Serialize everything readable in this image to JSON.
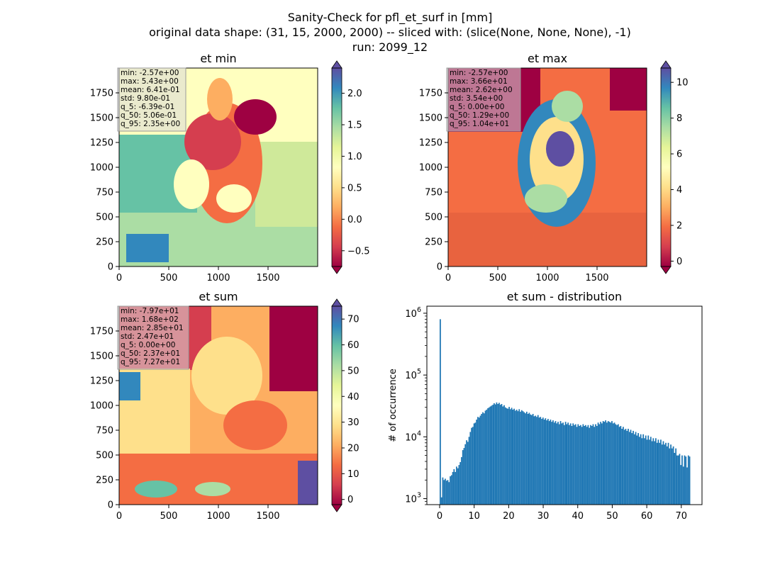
{
  "figure": {
    "title_lines": [
      "Sanity-Check for pfl_et_surf in [mm]",
      "original data shape: (31, 15, 2000, 2000) -- sliced with: (slice(None, None, None), -1)",
      "run: 2099_12"
    ]
  },
  "chart_data": [
    {
      "type": "heatmap",
      "title": "et min",
      "colormap": "Spectral",
      "x_ticks": [
        0,
        500,
        1000,
        1500
      ],
      "y_ticks": [
        0,
        250,
        500,
        750,
        1000,
        1250,
        1500,
        1750
      ],
      "xlim": [
        0,
        2000
      ],
      "ylim": [
        0,
        2000
      ],
      "colorbar": {
        "vmin": -0.75,
        "vmax": 2.4,
        "ticks": [
          -0.5,
          0.0,
          0.5,
          1.0,
          1.5,
          2.0
        ],
        "tick_labels": [
          "−0.5",
          "0.0",
          "0.5",
          "1.0",
          "1.5",
          "2.0"
        ],
        "extend": "both"
      },
      "stats": [
        "min: -2.57e+00",
        "max: 5.43e+00",
        "mean: 6.41e-01",
        "std: 9.80e-01",
        "q_5: -6.39e-01",
        "q_50: 5.06e-01",
        "q_95: 2.35e+00"
      ]
    },
    {
      "type": "heatmap",
      "title": "et max",
      "colormap": "Spectral",
      "x_ticks": [
        0,
        500,
        1000,
        1500
      ],
      "y_ticks": [
        0,
        250,
        500,
        750,
        1000,
        1250,
        1500,
        1750
      ],
      "xlim": [
        0,
        2000
      ],
      "ylim": [
        0,
        2000
      ],
      "colorbar": {
        "vmin": -0.3,
        "vmax": 10.8,
        "ticks": [
          0,
          2,
          4,
          6,
          8,
          10
        ],
        "tick_labels": [
          "0",
          "2",
          "4",
          "6",
          "8",
          "10"
        ],
        "extend": "both"
      },
      "stats": [
        "min: -2.57e+00",
        "max: 3.66e+01",
        "mean: 2.62e+00",
        "std: 3.54e+00",
        "q_5: 0.00e+00",
        "q_50: 1.29e+00",
        "q_95: 1.04e+01"
      ]
    },
    {
      "type": "heatmap",
      "title": "et sum",
      "colormap": "Spectral",
      "x_ticks": [
        0,
        500,
        1000,
        1500
      ],
      "y_ticks": [
        0,
        250,
        500,
        750,
        1000,
        1250,
        1500,
        1750
      ],
      "xlim": [
        0,
        2000
      ],
      "ylim": [
        0,
        2000
      ],
      "colorbar": {
        "vmin": -2,
        "vmax": 75,
        "ticks": [
          0,
          10,
          20,
          30,
          40,
          50,
          60,
          70
        ],
        "tick_labels": [
          "0",
          "10",
          "20",
          "30",
          "40",
          "50",
          "60",
          "70"
        ],
        "extend": "both"
      },
      "stats": [
        "min: -7.97e+01",
        "max: 1.68e+02",
        "mean: 2.85e+01",
        "std: 2.47e+01",
        "q_5: 0.00e+00",
        "q_50: 2.37e+01",
        "q_95: 7.27e+01"
      ]
    },
    {
      "type": "bar",
      "title": "et sum - distribution",
      "xlabel": "",
      "ylabel": "# of occurrence",
      "log_y": true,
      "xlim": [
        -3.7,
        76
      ],
      "ylim": [
        800,
        1300000
      ],
      "x_ticks": [
        0,
        10,
        20,
        30,
        40,
        50,
        60,
        70
      ],
      "y_ticks": [
        1000,
        10000,
        100000,
        1000000
      ],
      "y_tick_labels": [
        [
          "10",
          "3"
        ],
        [
          "10",
          "4"
        ],
        [
          "10",
          "5"
        ],
        [
          "10",
          "6"
        ]
      ],
      "color": "#1f77b4",
      "bin_width": 0.363,
      "bins": [
        {
          "x": 0,
          "count": 800000
        },
        {
          "x": 0.363,
          "count": 1050
        },
        {
          "x": 0.726,
          "count": 2200
        },
        {
          "x": 1.089,
          "count": 2000
        },
        {
          "x": 1.452,
          "count": 2100
        },
        {
          "x": 1.815,
          "count": 1950
        },
        {
          "x": 2.178,
          "count": 2000
        },
        {
          "x": 2.541,
          "count": 1850
        },
        {
          "x": 2.904,
          "count": 2300
        },
        {
          "x": 3.267,
          "count": 2400
        },
        {
          "x": 3.63,
          "count": 2700
        },
        {
          "x": 3.993,
          "count": 3000
        },
        {
          "x": 4.356,
          "count": 2700
        },
        {
          "x": 4.719,
          "count": 3300
        },
        {
          "x": 5.082,
          "count": 3100
        },
        {
          "x": 5.445,
          "count": 3500
        },
        {
          "x": 5.808,
          "count": 3900
        },
        {
          "x": 6.171,
          "count": 4700
        },
        {
          "x": 6.534,
          "count": 6100
        },
        {
          "x": 6.897,
          "count": 6600
        },
        {
          "x": 7.26,
          "count": 7600
        },
        {
          "x": 7.623,
          "count": 8800
        },
        {
          "x": 7.986,
          "count": 8300
        },
        {
          "x": 8.349,
          "count": 10000
        },
        {
          "x": 8.712,
          "count": 12000
        },
        {
          "x": 9.075,
          "count": 14000
        },
        {
          "x": 9.438,
          "count": 14500
        },
        {
          "x": 9.801,
          "count": 16500
        },
        {
          "x": 10.164,
          "count": 17000
        },
        {
          "x": 10.527,
          "count": 19000
        },
        {
          "x": 10.89,
          "count": 21000
        },
        {
          "x": 11.253,
          "count": 20500
        },
        {
          "x": 11.616,
          "count": 22000
        },
        {
          "x": 11.979,
          "count": 23500
        },
        {
          "x": 12.342,
          "count": 25000
        },
        {
          "x": 12.705,
          "count": 24000
        },
        {
          "x": 13.068,
          "count": 26500
        },
        {
          "x": 13.431,
          "count": 27500
        },
        {
          "x": 13.794,
          "count": 29000
        },
        {
          "x": 14.157,
          "count": 30000
        },
        {
          "x": 14.52,
          "count": 31000
        },
        {
          "x": 14.883,
          "count": 32000
        },
        {
          "x": 15.246,
          "count": 33000
        },
        {
          "x": 15.609,
          "count": 35000
        },
        {
          "x": 15.972,
          "count": 33500
        },
        {
          "x": 16.335,
          "count": 36000
        },
        {
          "x": 16.698,
          "count": 34000
        },
        {
          "x": 17.061,
          "count": 35500
        },
        {
          "x": 17.424,
          "count": 33000
        },
        {
          "x": 17.787,
          "count": 34000
        },
        {
          "x": 18.15,
          "count": 31000
        },
        {
          "x": 18.513,
          "count": 32500
        },
        {
          "x": 18.876,
          "count": 30000
        },
        {
          "x": 19.239,
          "count": 29000
        },
        {
          "x": 19.602,
          "count": 28500
        },
        {
          "x": 19.965,
          "count": 30500
        },
        {
          "x": 20.328,
          "count": 28000
        },
        {
          "x": 20.691,
          "count": 29500
        },
        {
          "x": 21.054,
          "count": 27500
        },
        {
          "x": 21.417,
          "count": 28500
        },
        {
          "x": 21.78,
          "count": 26500
        },
        {
          "x": 22.143,
          "count": 27500
        },
        {
          "x": 22.506,
          "count": 26000
        },
        {
          "x": 22.869,
          "count": 28000
        },
        {
          "x": 23.232,
          "count": 25500
        },
        {
          "x": 23.595,
          "count": 27000
        },
        {
          "x": 23.958,
          "count": 26000
        },
        {
          "x": 24.321,
          "count": 25000
        },
        {
          "x": 24.684,
          "count": 24000
        },
        {
          "x": 25.047,
          "count": 25500
        },
        {
          "x": 25.41,
          "count": 23500
        },
        {
          "x": 25.773,
          "count": 24500
        },
        {
          "x": 26.136,
          "count": 23000
        },
        {
          "x": 26.499,
          "count": 22500
        },
        {
          "x": 26.862,
          "count": 23500
        },
        {
          "x": 27.225,
          "count": 21500
        },
        {
          "x": 27.588,
          "count": 22000
        },
        {
          "x": 27.951,
          "count": 21000
        },
        {
          "x": 28.314,
          "count": 22500
        },
        {
          "x": 28.677,
          "count": 20500
        },
        {
          "x": 29.04,
          "count": 21000
        },
        {
          "x": 29.403,
          "count": 19500
        },
        {
          "x": 29.766,
          "count": 20500
        },
        {
          "x": 30.129,
          "count": 19000
        },
        {
          "x": 30.492,
          "count": 20000
        },
        {
          "x": 30.855,
          "count": 18500
        },
        {
          "x": 31.218,
          "count": 19500
        },
        {
          "x": 31.581,
          "count": 18000
        },
        {
          "x": 31.944,
          "count": 19000
        },
        {
          "x": 32.307,
          "count": 17500
        },
        {
          "x": 32.67,
          "count": 18500
        },
        {
          "x": 33.033,
          "count": 17000
        },
        {
          "x": 33.396,
          "count": 18000
        },
        {
          "x": 33.759,
          "count": 16500
        },
        {
          "x": 34.122,
          "count": 17500
        },
        {
          "x": 34.485,
          "count": 16000
        },
        {
          "x": 34.848,
          "count": 18000
        },
        {
          "x": 35.211,
          "count": 16500
        },
        {
          "x": 35.574,
          "count": 17000
        },
        {
          "x": 35.937,
          "count": 15500
        },
        {
          "x": 36.3,
          "count": 17500
        },
        {
          "x": 36.663,
          "count": 16000
        },
        {
          "x": 37.026,
          "count": 17000
        },
        {
          "x": 37.389,
          "count": 15500
        },
        {
          "x": 37.752,
          "count": 16500
        },
        {
          "x": 38.115,
          "count": 15000
        },
        {
          "x": 38.478,
          "count": 16500
        },
        {
          "x": 38.841,
          "count": 15500
        },
        {
          "x": 39.204,
          "count": 16000
        },
        {
          "x": 39.567,
          "count": 14500
        },
        {
          "x": 39.93,
          "count": 16000
        },
        {
          "x": 40.293,
          "count": 15000
        },
        {
          "x": 40.656,
          "count": 15500
        },
        {
          "x": 41.019,
          "count": 14500
        },
        {
          "x": 41.382,
          "count": 16000
        },
        {
          "x": 41.745,
          "count": 15000
        },
        {
          "x": 42.108,
          "count": 15500
        },
        {
          "x": 42.471,
          "count": 14500
        },
        {
          "x": 42.834,
          "count": 15500
        },
        {
          "x": 43.197,
          "count": 14000
        },
        {
          "x": 43.56,
          "count": 15500
        },
        {
          "x": 43.923,
          "count": 15000
        },
        {
          "x": 44.286,
          "count": 16000
        },
        {
          "x": 44.649,
          "count": 14500
        },
        {
          "x": 45.012,
          "count": 16000
        },
        {
          "x": 45.375,
          "count": 15000
        },
        {
          "x": 45.738,
          "count": 17000
        },
        {
          "x": 46.101,
          "count": 16000
        },
        {
          "x": 46.464,
          "count": 17500
        },
        {
          "x": 46.827,
          "count": 16500
        },
        {
          "x": 47.19,
          "count": 18000
        },
        {
          "x": 47.553,
          "count": 17500
        },
        {
          "x": 47.916,
          "count": 18500
        },
        {
          "x": 48.279,
          "count": 17000
        },
        {
          "x": 48.642,
          "count": 18000
        },
        {
          "x": 49.005,
          "count": 17500
        },
        {
          "x": 49.368,
          "count": 17000
        },
        {
          "x": 49.731,
          "count": 18000
        },
        {
          "x": 50.094,
          "count": 16500
        },
        {
          "x": 50.457,
          "count": 17000
        },
        {
          "x": 50.82,
          "count": 16000
        },
        {
          "x": 51.183,
          "count": 15500
        },
        {
          "x": 51.546,
          "count": 16000
        },
        {
          "x": 51.909,
          "count": 14500
        },
        {
          "x": 52.272,
          "count": 15000
        },
        {
          "x": 52.635,
          "count": 13500
        },
        {
          "x": 52.998,
          "count": 14500
        },
        {
          "x": 53.361,
          "count": 13000
        },
        {
          "x": 53.724,
          "count": 13500
        },
        {
          "x": 54.087,
          "count": 12500
        },
        {
          "x": 54.45,
          "count": 13500
        },
        {
          "x": 54.813,
          "count": 12000
        },
        {
          "x": 55.176,
          "count": 13000
        },
        {
          "x": 55.539,
          "count": 11500
        },
        {
          "x": 55.902,
          "count": 12500
        },
        {
          "x": 56.265,
          "count": 11000
        },
        {
          "x": 56.628,
          "count": 12000
        },
        {
          "x": 56.991,
          "count": 10500
        },
        {
          "x": 57.354,
          "count": 11500
        },
        {
          "x": 57.717,
          "count": 10000
        },
        {
          "x": 58.08,
          "count": 11000
        },
        {
          "x": 58.443,
          "count": 9500
        },
        {
          "x": 58.806,
          "count": 11000
        },
        {
          "x": 59.169,
          "count": 9500
        },
        {
          "x": 59.532,
          "count": 10500
        },
        {
          "x": 59.895,
          "count": 9000
        },
        {
          "x": 60.258,
          "count": 10500
        },
        {
          "x": 60.621,
          "count": 9000
        },
        {
          "x": 60.984,
          "count": 10000
        },
        {
          "x": 61.347,
          "count": 8500
        },
        {
          "x": 61.71,
          "count": 9500
        },
        {
          "x": 62.073,
          "count": 8500
        },
        {
          "x": 62.436,
          "count": 9500
        },
        {
          "x": 62.799,
          "count": 8000
        },
        {
          "x": 63.162,
          "count": 9000
        },
        {
          "x": 63.525,
          "count": 8000
        },
        {
          "x": 63.888,
          "count": 9000
        },
        {
          "x": 64.251,
          "count": 7500
        },
        {
          "x": 64.614,
          "count": 8500
        },
        {
          "x": 64.977,
          "count": 7500
        },
        {
          "x": 65.34,
          "count": 8000
        },
        {
          "x": 65.703,
          "count": 7000
        },
        {
          "x": 66.066,
          "count": 8000
        },
        {
          "x": 66.429,
          "count": 6500
        },
        {
          "x": 66.792,
          "count": 7500
        },
        {
          "x": 67.155,
          "count": 6500
        },
        {
          "x": 67.518,
          "count": 7000
        },
        {
          "x": 67.881,
          "count": 5500
        },
        {
          "x": 68.244,
          "count": 6500
        },
        {
          "x": 68.607,
          "count": 5000
        },
        {
          "x": 68.97,
          "count": 5000
        },
        {
          "x": 69.333,
          "count": 5300
        },
        {
          "x": 69.696,
          "count": 3500
        },
        {
          "x": 70.059,
          "count": 5000
        },
        {
          "x": 70.422,
          "count": 3300
        },
        {
          "x": 70.785,
          "count": 5000
        },
        {
          "x": 71.148,
          "count": 4800
        },
        {
          "x": 71.511,
          "count": 3200
        },
        {
          "x": 71.874,
          "count": 5000
        },
        {
          "x": 72.237,
          "count": 4800
        }
      ]
    }
  ]
}
